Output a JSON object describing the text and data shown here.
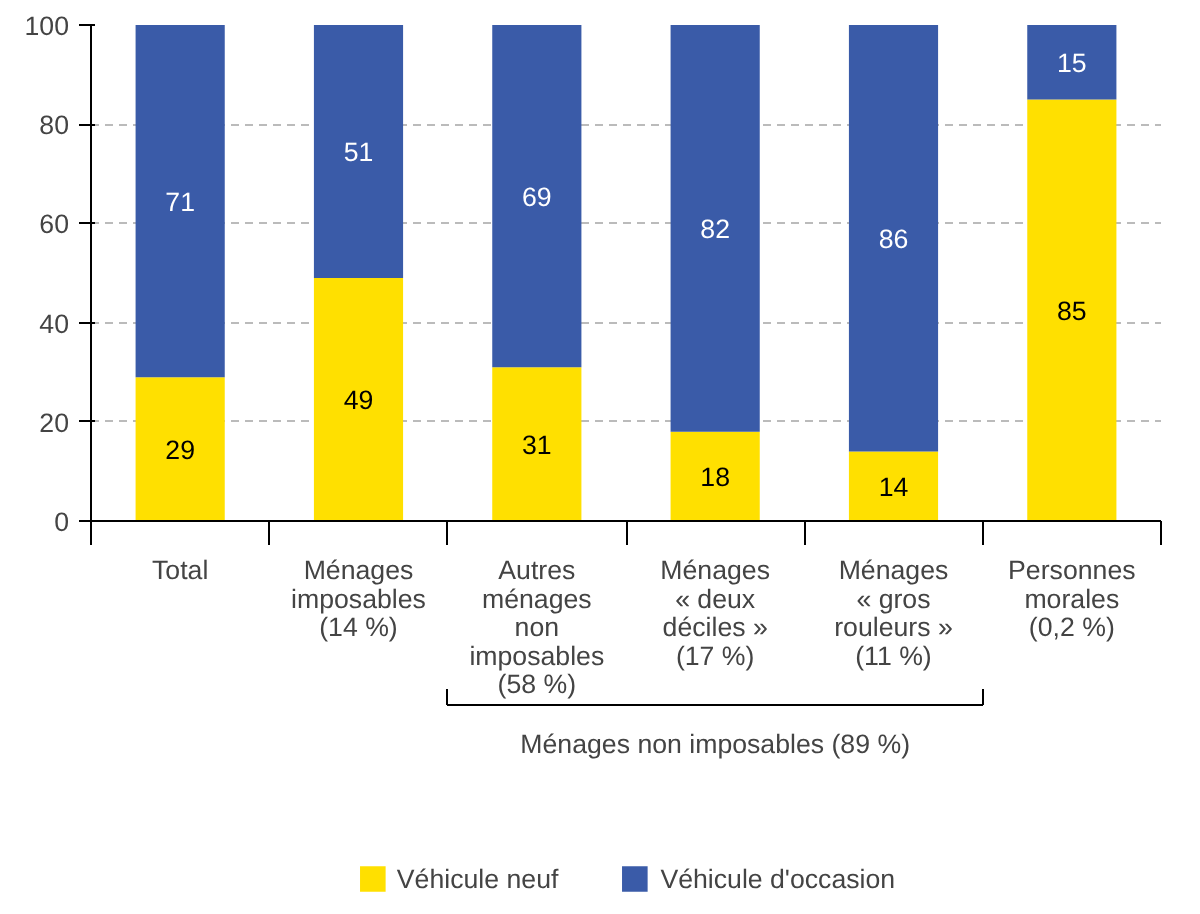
{
  "chart_data": {
    "type": "bar",
    "stacked": true,
    "categories": [
      "Total",
      "Ménages\nimposables\n(14 %)",
      "Autres\nménages\nnon\nimposables\n(58 %)",
      "Ménages\n« deux\ndéciles »\n(17 %)",
      "Ménages\n« gros\nrouleurs »\n(11 %)",
      "Personnes\nmorales\n(0,2 %)"
    ],
    "series": [
      {
        "name": "Véhicule neuf",
        "color": "#ffe000",
        "values": [
          29,
          49,
          31,
          18,
          14,
          85
        ]
      },
      {
        "name": "Véhicule d'occasion",
        "color": "#3a5ba8",
        "values": [
          71,
          51,
          69,
          82,
          86,
          15
        ]
      }
    ],
    "ylim": [
      0,
      100
    ],
    "yticks": [
      0,
      20,
      40,
      60,
      80,
      100
    ],
    "grid": "y",
    "data_labels": true,
    "legend": "bottom",
    "annotations": [
      "Ménages non imposables (89 %)"
    ]
  }
}
